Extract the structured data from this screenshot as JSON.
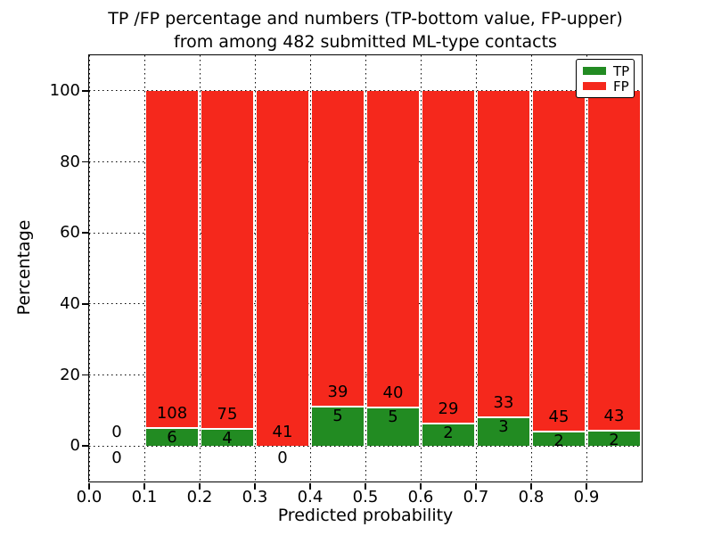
{
  "chart_data": {
    "type": "bar",
    "stacked": true,
    "title_line1": "TP /FP percentage and numbers (TP-bottom value, FP-upper)",
    "title_line2": "from among 482 submitted ML-type contacts",
    "xlabel": "Predicted probability",
    "ylabel": "Percentage",
    "total_contacts": 482,
    "xlim": [
      0.0,
      1.0
    ],
    "ylim": [
      -10,
      110
    ],
    "xticks": [
      0.0,
      0.1,
      0.2,
      0.3,
      0.4,
      0.5,
      0.6,
      0.7,
      0.8,
      0.9
    ],
    "yticks": [
      0,
      20,
      40,
      60,
      80,
      100
    ],
    "grid": "dotted",
    "legend_position": "upper-right",
    "legend": [
      {
        "name": "tp-swatch",
        "label": "TP",
        "color": "#228b22"
      },
      {
        "name": "fp-swatch",
        "label": "FP",
        "color": "#f5281c"
      }
    ],
    "series": [
      {
        "name": "TP",
        "role": "bottom",
        "color": "#228b22"
      },
      {
        "name": "FP",
        "role": "upper",
        "color": "#f5281c"
      }
    ],
    "bins": [
      {
        "start": 0.0,
        "end": 0.1,
        "tp": 0,
        "fp": 0,
        "tp_pct": 0,
        "fp_pct": 0
      },
      {
        "start": 0.1,
        "end": 0.2,
        "tp": 6,
        "fp": 108,
        "tp_pct": 5.26,
        "fp_pct": 94.74
      },
      {
        "start": 0.2,
        "end": 0.3,
        "tp": 4,
        "fp": 75,
        "tp_pct": 5.06,
        "fp_pct": 94.94
      },
      {
        "start": 0.3,
        "end": 0.4,
        "tp": 0,
        "fp": 41,
        "tp_pct": 0,
        "fp_pct": 100
      },
      {
        "start": 0.4,
        "end": 0.5,
        "tp": 5,
        "fp": 39,
        "tp_pct": 11.36,
        "fp_pct": 88.64
      },
      {
        "start": 0.5,
        "end": 0.6,
        "tp": 5,
        "fp": 40,
        "tp_pct": 11.11,
        "fp_pct": 88.89
      },
      {
        "start": 0.6,
        "end": 0.7,
        "tp": 2,
        "fp": 29,
        "tp_pct": 6.45,
        "fp_pct": 93.55
      },
      {
        "start": 0.7,
        "end": 0.8,
        "tp": 3,
        "fp": 33,
        "tp_pct": 8.33,
        "fp_pct": 91.67
      },
      {
        "start": 0.8,
        "end": 0.9,
        "tp": 2,
        "fp": 45,
        "tp_pct": 4.26,
        "fp_pct": 95.74
      },
      {
        "start": 0.9,
        "end": 1.0,
        "tp": 2,
        "fp": 43,
        "tp_pct": 4.44,
        "fp_pct": 95.56
      }
    ],
    "colors": {
      "tp": "#228b22",
      "fp": "#f5281c",
      "bar_divider": "#ffffff",
      "grid": "#000000",
      "text": "#000000",
      "background": "#ffffff"
    }
  }
}
